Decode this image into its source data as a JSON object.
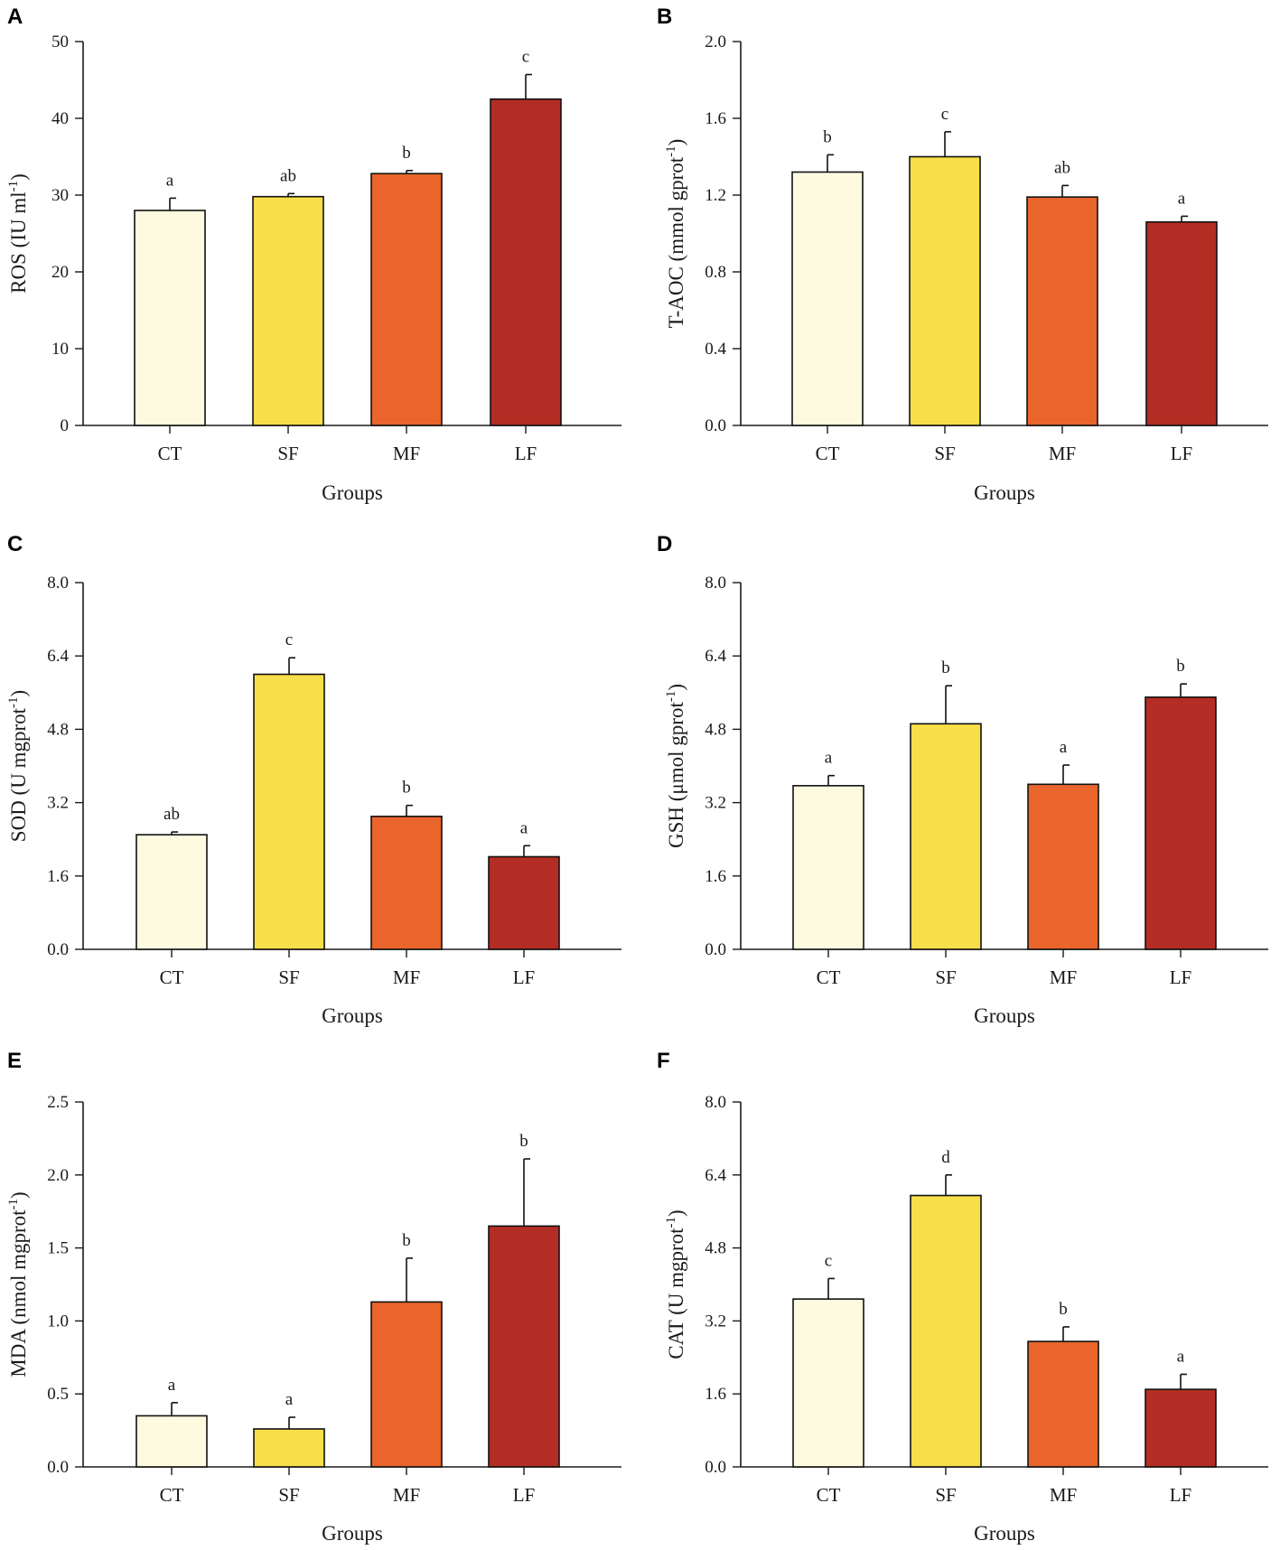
{
  "figure": {
    "colors": {
      "CT": "#fefae0",
      "SF": "#f7df4a",
      "MF": "#e9652c",
      "LF": "#b42d24",
      "axis": "#1a1a1a"
    },
    "panels": [
      {
        "letter": "A",
        "ylabel": "ROS (IU ml",
        "ylabel_sup": "-1",
        "ylabel_close": ")",
        "xlabel": "Groups",
        "ticks": [
          "0",
          "10",
          "20",
          "30",
          "40",
          "50"
        ]
      },
      {
        "letter": "B",
        "ylabel": "T-AOC (mmol gprot",
        "ylabel_sup": "-1",
        "ylabel_close": ")",
        "xlabel": "Groups",
        "ticks": [
          "0.0",
          "0.4",
          "0.8",
          "1.2",
          "1.6",
          "2.0"
        ]
      },
      {
        "letter": "C",
        "ylabel": "SOD (U mgprot",
        "ylabel_sup": "-1",
        "ylabel_close": ")",
        "xlabel": "Groups",
        "ticks": [
          "0.0",
          "1.6",
          "3.2",
          "4.8",
          "6.4",
          "8.0"
        ]
      },
      {
        "letter": "D",
        "ylabel": "GSH (μmol gprot",
        "ylabel_sup": "-1",
        "ylabel_close": ")",
        "xlabel": "Groups",
        "ticks": [
          "0.0",
          "1.6",
          "3.2",
          "4.8",
          "6.4",
          "8.0"
        ]
      },
      {
        "letter": "E",
        "ylabel": "MDA (nmol mgprot",
        "ylabel_sup": "-1",
        "ylabel_close": ")",
        "xlabel": "Groups",
        "ticks": [
          "0.0",
          "0.5",
          "1.0",
          "1.5",
          "2.0",
          "2.5"
        ]
      },
      {
        "letter": "F",
        "ylabel": "CAT (U mgprot",
        "ylabel_sup": "-1",
        "ylabel_close": ")",
        "xlabel": "Groups",
        "ticks": [
          "0.0",
          "1.6",
          "3.2",
          "4.8",
          "6.4",
          "8.0"
        ]
      }
    ]
  },
  "chart_data": [
    {
      "type": "bar",
      "panel": "A",
      "title": "",
      "xlabel": "Groups",
      "ylabel": "ROS (IU ml-1)",
      "categories": [
        "CT",
        "SF",
        "MF",
        "LF"
      ],
      "ylim": [
        0,
        50
      ],
      "values": [
        28.0,
        29.8,
        32.8,
        42.5
      ],
      "errors": [
        1.6,
        0.4,
        0.4,
        3.2
      ],
      "sig_labels": [
        "a",
        "ab",
        "b",
        "c"
      ]
    },
    {
      "type": "bar",
      "panel": "B",
      "title": "",
      "xlabel": "Groups",
      "ylabel": "T-AOC (mmol gprot-1)",
      "categories": [
        "CT",
        "SF",
        "MF",
        "LF"
      ],
      "ylim": [
        0,
        2.0
      ],
      "values": [
        1.32,
        1.4,
        1.19,
        1.06
      ],
      "errors": [
        0.09,
        0.13,
        0.06,
        0.03
      ],
      "sig_labels": [
        "b",
        "c",
        "ab",
        "a"
      ]
    },
    {
      "type": "bar",
      "panel": "C",
      "title": "",
      "xlabel": "Groups",
      "ylabel": "SOD (U mgprot-1)",
      "categories": [
        "CT",
        "SF",
        "MF",
        "LF"
      ],
      "ylim": [
        0,
        8.0
      ],
      "values": [
        2.5,
        6.0,
        2.9,
        2.02
      ],
      "errors": [
        0.06,
        0.36,
        0.24,
        0.24
      ],
      "sig_labels": [
        "ab",
        "c",
        "b",
        "a"
      ]
    },
    {
      "type": "bar",
      "panel": "D",
      "title": "",
      "xlabel": "Groups",
      "ylabel": "GSH (μmol gprot-1)",
      "categories": [
        "CT",
        "SF",
        "MF",
        "LF"
      ],
      "ylim": [
        0,
        8.0
      ],
      "values": [
        3.57,
        4.92,
        3.6,
        5.5
      ],
      "errors": [
        0.22,
        0.83,
        0.42,
        0.29
      ],
      "sig_labels": [
        "a",
        "b",
        "a",
        "b"
      ]
    },
    {
      "type": "bar",
      "panel": "E",
      "title": "",
      "xlabel": "Groups",
      "ylabel": "MDA (nmol mgprot-1)",
      "categories": [
        "CT",
        "SF",
        "MF",
        "LF"
      ],
      "ylim": [
        0,
        2.5
      ],
      "values": [
        0.35,
        0.26,
        1.13,
        1.65
      ],
      "errors": [
        0.09,
        0.08,
        0.3,
        0.46
      ],
      "sig_labels": [
        "a",
        "a",
        "b",
        "b"
      ]
    },
    {
      "type": "bar",
      "panel": "F",
      "title": "",
      "xlabel": "Groups",
      "ylabel": "CAT (U mgprot-1)",
      "categories": [
        "CT",
        "SF",
        "MF",
        "LF"
      ],
      "ylim": [
        0,
        8.0
      ],
      "values": [
        3.68,
        5.95,
        2.75,
        1.7
      ],
      "errors": [
        0.45,
        0.45,
        0.32,
        0.33
      ],
      "sig_labels": [
        "c",
        "d",
        "b",
        "a"
      ]
    }
  ]
}
